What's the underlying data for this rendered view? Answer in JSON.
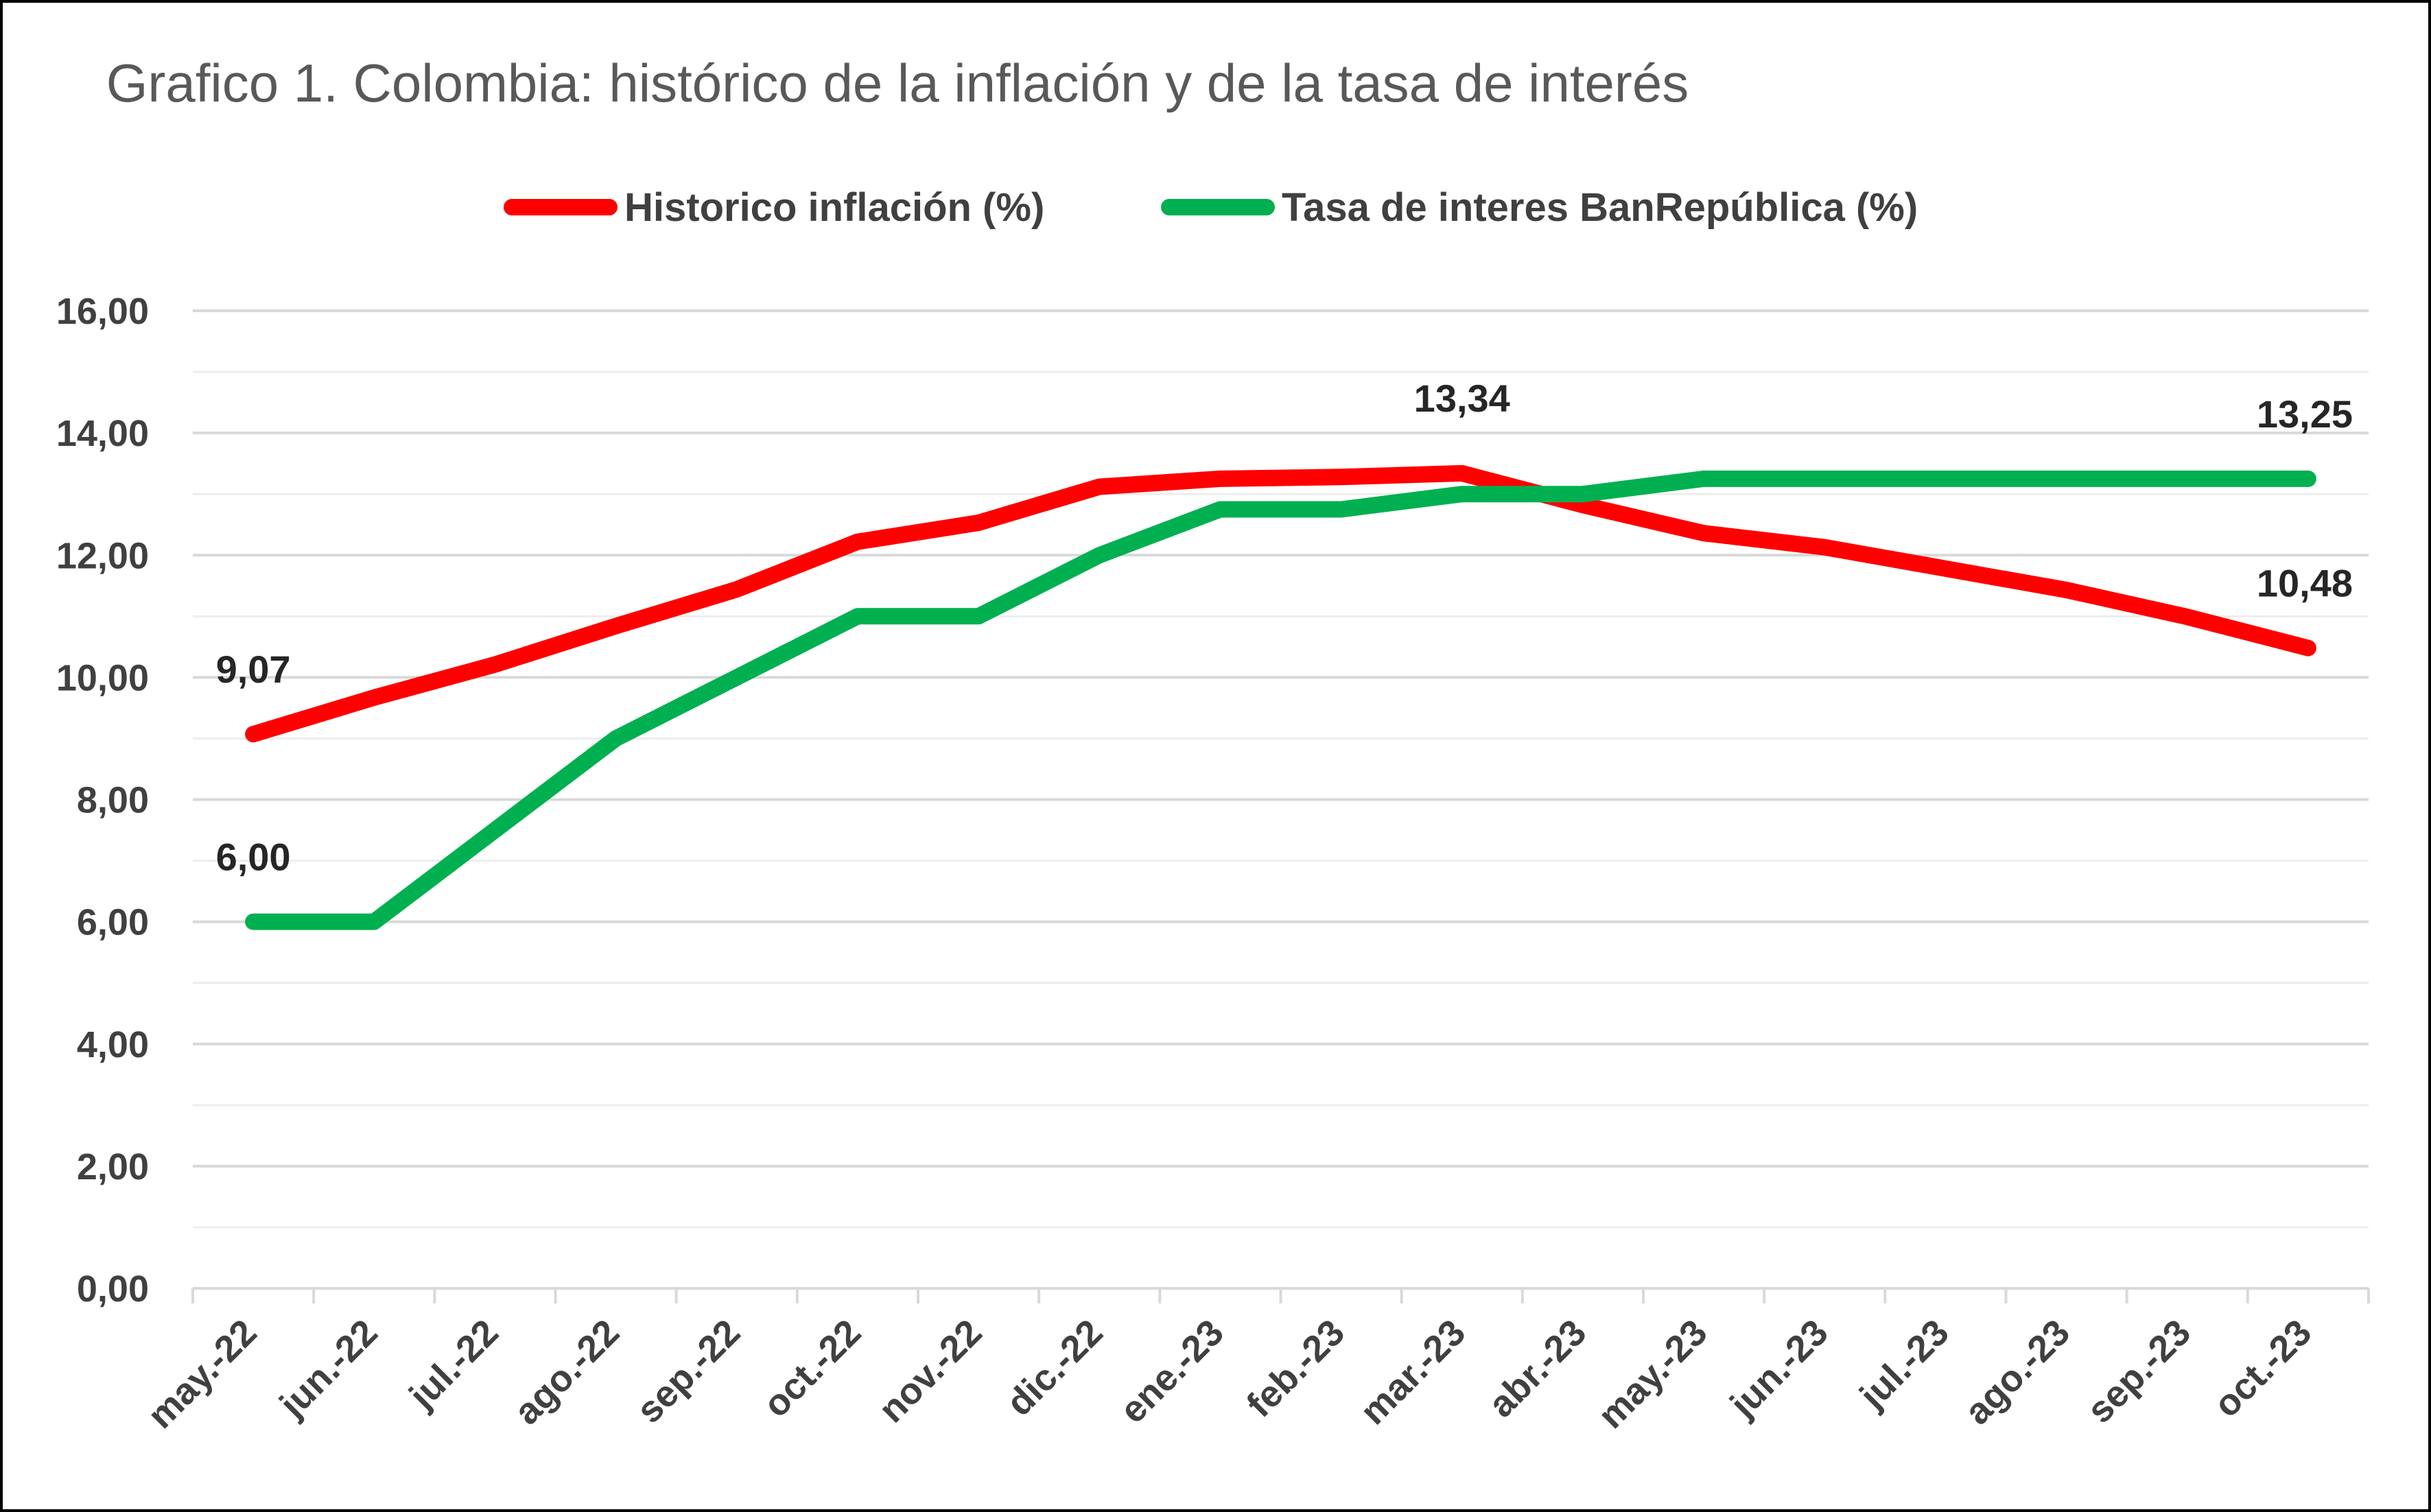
{
  "chart_data": {
    "type": "line",
    "title": "Grafico 1. Colombia: histórico de la inflación y de la tasa de interés",
    "categories": [
      "may.-22",
      "jun.-22",
      "jul.-22",
      "ago.-22",
      "sep.-22",
      "oct.-22",
      "nov.-22",
      "dic.-22",
      "ene.-23",
      "feb.-23",
      "mar.-23",
      "abr.-23",
      "may.-23",
      "jun.-23",
      "jul.-23",
      "ago.-23",
      "sep.-23",
      "oct.-23"
    ],
    "series": [
      {
        "name": "Historico inflación (%)",
        "color": "#ff0000",
        "values": [
          9.07,
          9.67,
          10.21,
          10.84,
          11.44,
          12.22,
          12.53,
          13.12,
          13.25,
          13.28,
          13.34,
          12.82,
          12.36,
          12.13,
          11.78,
          11.43,
          10.99,
          10.48
        ]
      },
      {
        "name": "Tasa de interes BanRepública (%)",
        "color": "#00b050",
        "values": [
          6.0,
          6.0,
          7.5,
          9.0,
          10.0,
          11.0,
          11.0,
          12.0,
          12.75,
          12.75,
          13.0,
          13.0,
          13.25,
          13.25,
          13.25,
          13.25,
          13.25,
          13.25
        ]
      }
    ],
    "ylim": [
      0,
      16
    ],
    "yticks": [
      "0,00",
      "2,00",
      "4,00",
      "6,00",
      "8,00",
      "10,00",
      "12,00",
      "14,00",
      "16,00"
    ],
    "grid": true,
    "legend_position": "top",
    "data_labels": [
      {
        "series": 0,
        "index": 0,
        "text": "9,07"
      },
      {
        "series": 1,
        "index": 0,
        "text": "6,00"
      },
      {
        "series": 0,
        "index": 10,
        "text": "13,34"
      },
      {
        "series": 1,
        "index": 17,
        "text": "13,25"
      },
      {
        "series": 0,
        "index": 17,
        "text": "10,48"
      }
    ]
  }
}
